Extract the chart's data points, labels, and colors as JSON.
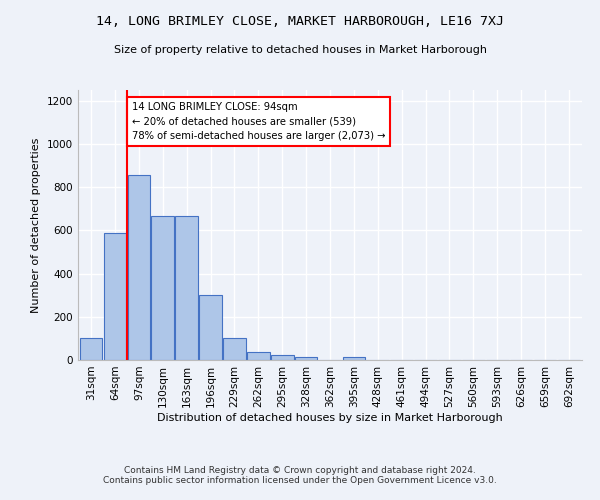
{
  "title": "14, LONG BRIMLEY CLOSE, MARKET HARBOROUGH, LE16 7XJ",
  "subtitle": "Size of property relative to detached houses in Market Harborough",
  "xlabel": "Distribution of detached houses by size in Market Harborough",
  "ylabel": "Number of detached properties",
  "footer_line1": "Contains HM Land Registry data © Crown copyright and database right 2024.",
  "footer_line2": "Contains public sector information licensed under the Open Government Licence v3.0.",
  "bin_labels": [
    "31sqm",
    "64sqm",
    "97sqm",
    "130sqm",
    "163sqm",
    "196sqm",
    "229sqm",
    "262sqm",
    "295sqm",
    "328sqm",
    "362sqm",
    "395sqm",
    "428sqm",
    "461sqm",
    "494sqm",
    "527sqm",
    "560sqm",
    "593sqm",
    "626sqm",
    "659sqm",
    "692sqm"
  ],
  "bar_values": [
    100,
    590,
    855,
    665,
    665,
    300,
    100,
    35,
    25,
    15,
    0,
    15,
    0,
    0,
    0,
    0,
    0,
    0,
    0,
    0,
    0
  ],
  "ylim": [
    0,
    1250
  ],
  "yticks": [
    0,
    200,
    400,
    600,
    800,
    1000,
    1200
  ],
  "bar_color": "#aec6e8",
  "bar_edge_color": "#4472c4",
  "vline_x_index": 1,
  "vline_color": "red",
  "annotation_text": "14 LONG BRIMLEY CLOSE: 94sqm\n← 20% of detached houses are smaller (539)\n78% of semi-detached houses are larger (2,073) →",
  "annotation_box_color": "white",
  "annotation_box_edge_color": "red",
  "background_color": "#eef2f9",
  "title_fontsize": 9.5,
  "subtitle_fontsize": 8,
  "axis_label_fontsize": 8,
  "tick_fontsize": 7.5,
  "footer_fontsize": 6.5
}
